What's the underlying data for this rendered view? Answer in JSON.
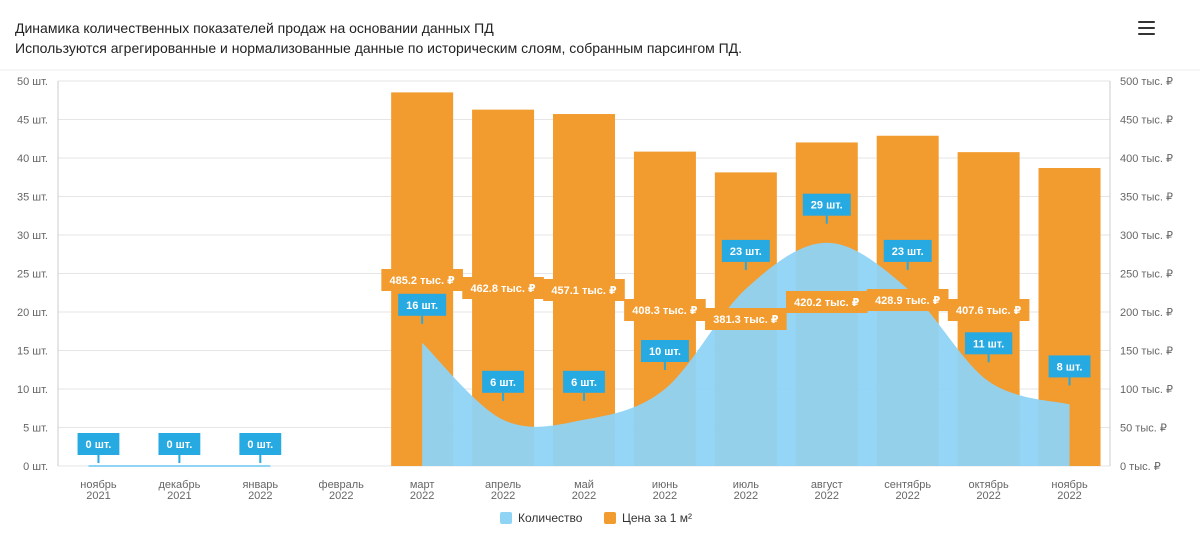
{
  "header": {
    "title": "Динамика количественных показателей продаж на основании данных ПД",
    "subtitle": "Используются агрегированные и нормализованные данные по историческим слоям, собранным парсингом ПД.",
    "menu_icon": "hamburger-menu-icon"
  },
  "colors": {
    "count": "#8fd3f5",
    "price": "#f29b2e",
    "count_label": "#27a9e1",
    "price_label": "#f29b2e"
  },
  "chart_data": {
    "type": "bar",
    "categories": [
      [
        "ноябрь",
        "2021"
      ],
      [
        "декабрь",
        "2021"
      ],
      [
        "январь",
        "2022"
      ],
      [
        "февраль",
        "2022"
      ],
      [
        "март",
        "2022"
      ],
      [
        "апрель",
        "2022"
      ],
      [
        "май",
        "2022"
      ],
      [
        "июнь",
        "2022"
      ],
      [
        "июль",
        "2022"
      ],
      [
        "август",
        "2022"
      ],
      [
        "сентябрь",
        "2022"
      ],
      [
        "октябрь",
        "2022"
      ],
      [
        "ноябрь",
        "2022"
      ]
    ],
    "series": [
      {
        "name": "Количество",
        "type": "area",
        "axis": "left",
        "values": [
          0,
          0,
          0,
          null,
          16,
          6,
          6,
          10,
          23,
          29,
          23,
          11,
          8
        ],
        "labels": [
          "0 шт.",
          "0 шт.",
          "0 шт.",
          null,
          "16 шт.",
          "6 шт.",
          "6 шт.",
          "10 шт.",
          "23 шт.",
          "29 шт.",
          "23 шт.",
          "11 шт.",
          "8 шт."
        ]
      },
      {
        "name": "Цена за 1 м²",
        "type": "bar",
        "axis": "right",
        "values": [
          null,
          null,
          null,
          null,
          485.2,
          462.8,
          457.1,
          408.3,
          381.3,
          420.2,
          428.9,
          407.6,
          387
        ],
        "labels": [
          null,
          null,
          null,
          null,
          "485.2 тыс. ₽",
          "462.8 тыс. ₽",
          "457.1 тыс. ₽",
          "408.3 тыс. ₽",
          "381.3 тыс. ₽",
          "420.2 тыс. ₽",
          "428.9 тыс. ₽",
          "407.6 тыс. ₽",
          null
        ]
      }
    ],
    "y_left": {
      "min": 0,
      "max": 50,
      "ticks": [
        "0 шт.",
        "5 шт.",
        "10 шт.",
        "15 шт.",
        "20 шт.",
        "25 шт.",
        "30 шт.",
        "35 шт.",
        "40 шт.",
        "45 шт.",
        "50 шт."
      ]
    },
    "y_right": {
      "min": 0,
      "max": 500,
      "ticks": [
        "0 тыс. ₽",
        "50 тыс. ₽",
        "100 тыс. ₽",
        "150 тыс. ₽",
        "200 тыс. ₽",
        "250 тыс. ₽",
        "300 тыс. ₽",
        "350 тыс. ₽",
        "400 тыс. ₽",
        "450 тыс. ₽",
        "500 тыс. ₽"
      ]
    },
    "legend": {
      "position": "bottom-center",
      "items": [
        {
          "label": "Количество",
          "color": "#8fd3f5"
        },
        {
          "label": "Цена за 1 м²",
          "color": "#f29b2e"
        }
      ]
    },
    "grid": true
  }
}
